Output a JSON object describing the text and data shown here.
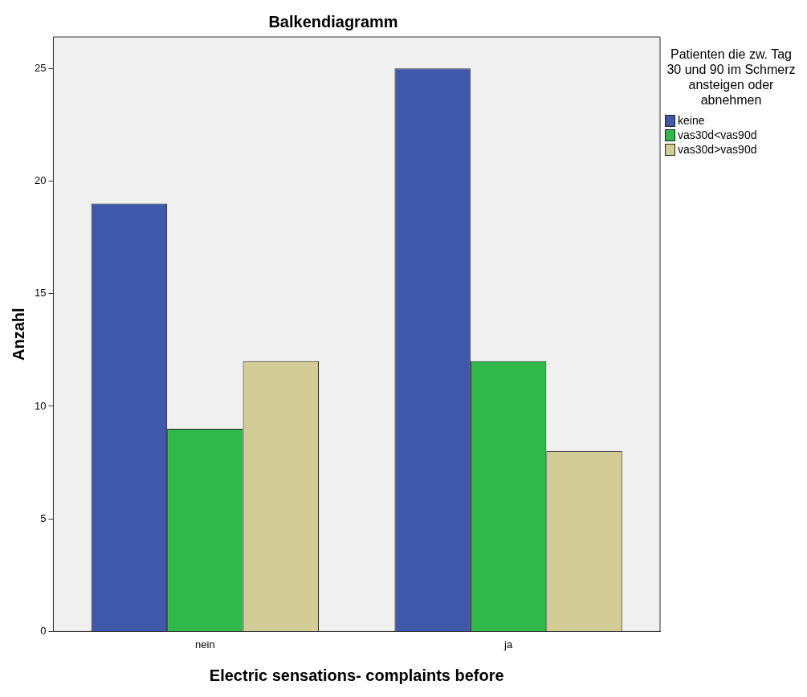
{
  "chart_data": {
    "type": "bar",
    "title": "Balkendiagramm",
    "xlabel": "Electric sensations- complaints before",
    "ylabel": "Anzahl",
    "legend_title": "Patienten die zw. Tag 30 und 90 im Schmerz ansteigen oder abnehmen",
    "categories": [
      "nein",
      "ja"
    ],
    "series": [
      {
        "name": "keine",
        "color": "#3f58aa",
        "values": [
          19,
          25
        ]
      },
      {
        "name": "vas30d<vas90d",
        "color": "#30b84a",
        "values": [
          9,
          12
        ]
      },
      {
        "name": "vas30d>vas90d",
        "color": "#d3cc96",
        "values": [
          12,
          8
        ]
      }
    ],
    "ylim": [
      0,
      26.4
    ],
    "yticks": [
      0,
      5,
      10,
      15,
      20,
      25
    ],
    "grid": false,
    "legend": "top right"
  }
}
